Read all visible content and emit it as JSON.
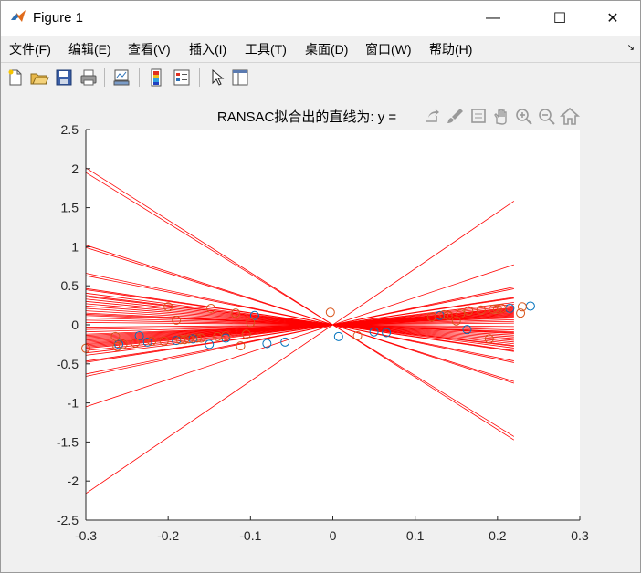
{
  "window": {
    "title": "Figure 1",
    "minimize_symbol": "—",
    "maximize_symbol": "☐",
    "close_symbol": "✕"
  },
  "menu": [
    {
      "label": "文件(F)"
    },
    {
      "label": "编辑(E)"
    },
    {
      "label": "查看(V)"
    },
    {
      "label": "插入(I)"
    },
    {
      "label": "工具(T)"
    },
    {
      "label": "桌面(D)"
    },
    {
      "label": "窗口(W)"
    },
    {
      "label": "帮助(H)"
    }
  ],
  "toolbar": {
    "icons": [
      "new-figure-icon",
      "open-file-icon",
      "save-icon",
      "print-icon",
      "link-plot-icon",
      "insert-colorbar-icon",
      "insert-legend-icon",
      "select-pointer-icon",
      "property-inspector-icon"
    ]
  },
  "axes_toolbar": {
    "icons": [
      "export-icon",
      "brush-icon",
      "data-tips-icon",
      "pan-icon",
      "zoom-in-icon",
      "zoom-out-icon",
      "home-icon"
    ]
  },
  "chart_data": {
    "type": "scatter",
    "title": "RANSAC拟合出的直线为: y =",
    "xlabel": "",
    "ylabel": "",
    "xlim": [
      -0.3,
      0.3
    ],
    "ylim": [
      -2.5,
      2.5
    ],
    "xticks": [
      -0.3,
      -0.2,
      -0.1,
      0,
      0.1,
      0.2,
      0.3
    ],
    "yticks": [
      -2.5,
      -2,
      -1.5,
      -1,
      -0.5,
      0,
      0.5,
      1,
      1.5,
      2,
      2.5
    ],
    "xtick_labels": [
      "-0.3",
      "-0.2",
      "-0.1",
      "0",
      "0.1",
      "0.2",
      "0.3"
    ],
    "ytick_labels": [
      "-2.5",
      "-2",
      "-1.5",
      "-1",
      "-0.5",
      "0",
      "0.5",
      "1",
      "1.5",
      "2",
      "2.5"
    ],
    "grid": false,
    "colors": {
      "series_blue": "#0072bd",
      "series_orange": "#d95319",
      "lines": "#ff0000"
    },
    "series": [
      {
        "marker": "circle",
        "color": "#0072bd",
        "points": [
          [
            -0.26,
            -0.25
          ],
          [
            -0.235,
            -0.14
          ],
          [
            -0.225,
            -0.22
          ],
          [
            -0.19,
            -0.2
          ],
          [
            -0.17,
            -0.18
          ],
          [
            -0.15,
            -0.25
          ],
          [
            -0.13,
            -0.17
          ],
          [
            -0.095,
            0.12
          ],
          [
            -0.08,
            -0.24
          ],
          [
            -0.058,
            -0.22
          ],
          [
            0.007,
            -0.15
          ],
          [
            0.05,
            -0.09
          ],
          [
            0.065,
            -0.1
          ],
          [
            0.13,
            0.12
          ],
          [
            0.163,
            -0.06
          ],
          [
            0.215,
            0.21
          ],
          [
            0.24,
            0.24
          ]
        ]
      },
      {
        "marker": "circle",
        "color": "#d95319",
        "points": [
          [
            -0.3,
            -0.3
          ],
          [
            -0.264,
            -0.15
          ],
          [
            -0.262,
            -0.28
          ],
          [
            -0.255,
            -0.25
          ],
          [
            -0.24,
            -0.23
          ],
          [
            -0.22,
            -0.21
          ],
          [
            -0.205,
            -0.21
          ],
          [
            -0.2,
            0.23
          ],
          [
            -0.19,
            0.06
          ],
          [
            -0.185,
            -0.19
          ],
          [
            -0.18,
            -0.19
          ],
          [
            -0.175,
            -0.18
          ],
          [
            -0.165,
            -0.17
          ],
          [
            -0.16,
            -0.17
          ],
          [
            -0.148,
            0.21
          ],
          [
            -0.14,
            -0.15
          ],
          [
            -0.13,
            -0.14
          ],
          [
            -0.118,
            0.15
          ],
          [
            -0.112,
            -0.27
          ],
          [
            -0.105,
            -0.12
          ],
          [
            -0.1,
            0.03
          ],
          [
            -0.003,
            0.16
          ],
          [
            0.03,
            -0.14
          ],
          [
            0.12,
            0.1
          ],
          [
            0.135,
            0.13
          ],
          [
            0.14,
            0.12
          ],
          [
            0.15,
            0.05
          ],
          [
            0.155,
            0.14
          ],
          [
            0.165,
            0.18
          ],
          [
            0.18,
            0.19
          ],
          [
            0.19,
            -0.18
          ],
          [
            0.195,
            0.2
          ],
          [
            0.2,
            0.2
          ],
          [
            0.205,
            0.21
          ],
          [
            0.228,
            0.15
          ],
          [
            0.23,
            0.23
          ]
        ]
      }
    ],
    "fitted_line_slopes": [
      7.2,
      -6.7,
      -6.5,
      3.5,
      -3.4,
      -3.3,
      2.2,
      2.1,
      -2.1,
      -2.2,
      1.6,
      1.55,
      -1.55,
      1.3,
      -1.35,
      1.0,
      0.95,
      0.9,
      0.85,
      0.8,
      0.75,
      0.7,
      0.65,
      0.6,
      0.55,
      0.5,
      0.45,
      -0.45,
      -0.5,
      -0.6,
      -0.7,
      -0.8,
      -0.9,
      -1.0,
      -1.1,
      -1.2,
      -1.25,
      0.4,
      0.3,
      -0.3,
      -0.4,
      1.1,
      1.2,
      -0.2,
      0.2,
      -0.1,
      0.1,
      -1.5
    ],
    "fitted_line_xrange": [
      -0.3,
      0.22
    ]
  }
}
